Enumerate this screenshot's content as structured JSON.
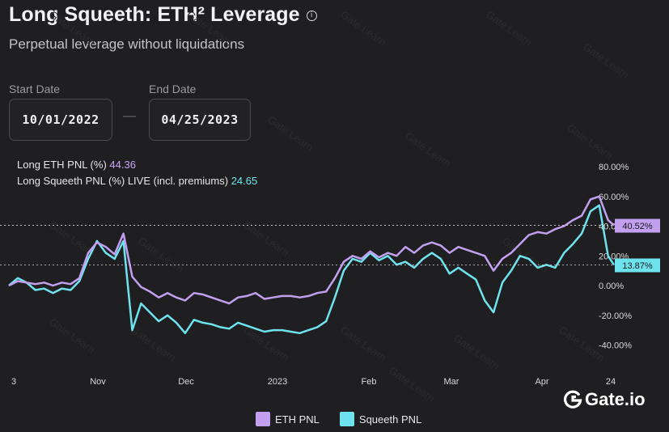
{
  "header": {
    "title": "Long Squeeth: ETH² Leverage",
    "subtitle": "Perpetual leverage without liquidations",
    "info_icon": "info-icon"
  },
  "date_range": {
    "start_label": "Start Date",
    "start_value": "10/01/2022",
    "end_label": "End Date",
    "end_value": "04/25/2023",
    "separator": "—"
  },
  "readout": {
    "eth_label": "Long ETH PNL (%)",
    "eth_value": "44.36",
    "squeeth_label": "Long Squeeth PNL (%) LIVE (incl. premiums)",
    "squeeth_value": "24.65"
  },
  "brand": {
    "name": "Gate.io",
    "icon": "gate-logo-icon"
  },
  "colors": {
    "eth": "#c39ff0",
    "squeeth": "#6ee3ee",
    "background": "#1f1f21"
  },
  "chart_data": {
    "type": "line",
    "x_ticks": [
      "3",
      "Nov",
      "Dec",
      "2023",
      "Feb",
      "Mar",
      "Apr",
      "24"
    ],
    "y_ticks": [
      "80.00%",
      "60.00%",
      "40.00%",
      "20.00%",
      "0.00%",
      "-20.00%",
      "-40.00%"
    ],
    "ylim": [
      -45,
      85
    ],
    "y_axis_side": "right",
    "grid": false,
    "legend_position": "bottom",
    "markers": [
      {
        "series": "ETH PNL",
        "label": "40.52%",
        "value": 40.52
      },
      {
        "series": "Squeeth PNL",
        "label": "13.87%",
        "value": 13.87
      }
    ],
    "x_days": [
      0,
      3,
      6,
      9,
      12,
      15,
      18,
      21,
      24,
      27,
      30,
      33,
      36,
      39,
      42,
      45,
      48,
      51,
      54,
      57,
      60,
      63,
      66,
      69,
      72,
      75,
      78,
      81,
      84,
      87,
      90,
      93,
      96,
      99,
      102,
      105,
      108,
      111,
      114,
      117,
      120,
      123,
      126,
      129,
      132,
      135,
      138,
      141,
      144,
      147,
      150,
      153,
      156,
      159,
      162,
      165,
      168,
      171,
      174,
      177,
      180,
      183,
      186,
      189,
      192,
      195,
      198,
      201,
      204,
      206
    ],
    "series": [
      {
        "name": "ETH PNL",
        "values": [
          0,
          3,
          2,
          1,
          2,
          0,
          2,
          1,
          5,
          22,
          29,
          26,
          21,
          35,
          6,
          -1,
          -4,
          -8,
          -5,
          -8,
          -10,
          -5,
          -6,
          -8,
          -10,
          -12,
          -8,
          -7,
          -5,
          -9,
          -8,
          -7,
          -7,
          -8,
          -7,
          -5,
          -4,
          5,
          16,
          20,
          18,
          23,
          19,
          22,
          20,
          26,
          22,
          27,
          29,
          27,
          22,
          26,
          24,
          22,
          20,
          10,
          18,
          22,
          28,
          34,
          36,
          35,
          38,
          40,
          44,
          47,
          58,
          60,
          44,
          40.52
        ]
      },
      {
        "name": "Squeeth PNL",
        "values": [
          0,
          5,
          2,
          -3,
          -2,
          -5,
          -2,
          -3,
          3,
          18,
          30,
          22,
          18,
          30,
          -30,
          -12,
          -18,
          -24,
          -20,
          -25,
          -32,
          -23,
          -25,
          -26,
          -28,
          -29,
          -25,
          -27,
          -29,
          -31,
          -30,
          -30,
          -31,
          -32,
          -30,
          -28,
          -24,
          -8,
          10,
          18,
          16,
          22,
          17,
          20,
          14,
          16,
          12,
          18,
          22,
          18,
          8,
          12,
          8,
          4,
          -10,
          -18,
          2,
          10,
          20,
          18,
          12,
          14,
          12,
          22,
          28,
          35,
          50,
          54,
          20,
          13.87
        ]
      }
    ]
  }
}
